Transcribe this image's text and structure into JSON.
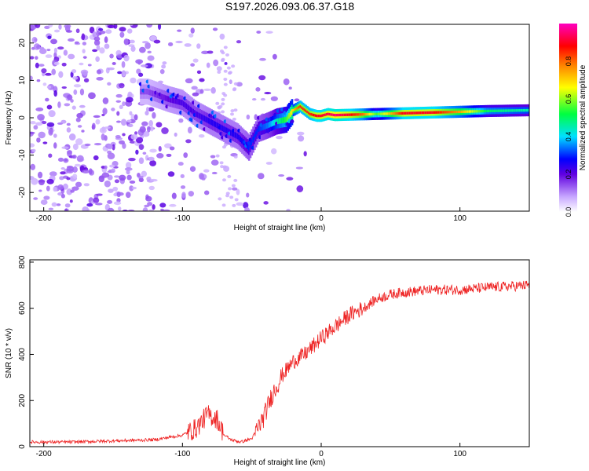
{
  "title": "S197.2026.093.06.37.G18",
  "chart_data": [
    {
      "type": "heatmap",
      "xlabel": "Height of straight line (km)",
      "ylabel": "Frequency (Hz)",
      "xlim": [
        -210,
        150
      ],
      "ylim": [
        -25,
        25
      ],
      "xticks": [
        -200,
        -100,
        0,
        100
      ],
      "yticks": [
        -20,
        -10,
        0,
        10,
        20
      ],
      "grid": false,
      "colorbar": {
        "label": "Normalized spectral amplitude",
        "range": [
          0,
          1
        ],
        "ticks": [
          "0.0",
          "0.2",
          "0.4",
          "0.6",
          "0.8"
        ],
        "tick_values": [
          0,
          0.2,
          0.4,
          0.6,
          0.8
        ],
        "colors": [
          "#ffffff",
          "#c8a8ff",
          "#6000e0",
          "#0000ff",
          "#00e0ff",
          "#00ff40",
          "#ffff00",
          "#ff8000",
          "#ff0000",
          "#ff00c0"
        ]
      },
      "ridge": {
        "x": [
          -125,
          -110,
          -100,
          -90,
          -80,
          -70,
          -60,
          -52,
          -45,
          -38,
          -32,
          -25,
          -20,
          -15,
          -8,
          -3,
          0,
          5,
          10,
          20,
          30,
          40,
          60,
          80,
          100,
          120,
          150
        ],
        "y": [
          7,
          5,
          4,
          1,
          -1,
          -3,
          -5,
          -8,
          -3,
          -2,
          -1,
          -0.5,
          2,
          3,
          1,
          0.5,
          0.5,
          1,
          0.7,
          0.8,
          0.9,
          1.0,
          1.2,
          1.4,
          1.6,
          1.8,
          2.0
        ],
        "amplitude": [
          0.15,
          0.2,
          0.22,
          0.22,
          0.25,
          0.25,
          0.25,
          0.3,
          0.3,
          0.35,
          0.45,
          0.55,
          0.7,
          0.85,
          0.85,
          0.9,
          0.9,
          0.92,
          0.95,
          0.9,
          0.8,
          0.55,
          0.9,
          0.9,
          0.75,
          0.5,
          0.45
        ]
      }
    },
    {
      "type": "line",
      "xlabel": "Height of straight line (km)",
      "ylabel": "SNR (10 * v/v)",
      "xlim": [
        -210,
        150
      ],
      "ylim": [
        0,
        810
      ],
      "xticks": [
        -200,
        -100,
        0,
        100
      ],
      "yticks": [
        0,
        200,
        400,
        600,
        800
      ],
      "grid": false,
      "series": [
        {
          "name": "SNR",
          "color": "#ee2222",
          "x": [
            -210,
            -180,
            -150,
            -120,
            -110,
            -100,
            -90,
            -82,
            -75,
            -70,
            -65,
            -58,
            -50,
            -42,
            -35,
            -28,
            -20,
            -12,
            -5,
            0,
            10,
            20,
            30,
            40,
            50,
            60,
            80,
            100,
            120,
            150
          ],
          "y": [
            20,
            20,
            25,
            30,
            40,
            50,
            80,
            140,
            120,
            50,
            30,
            20,
            35,
            120,
            230,
            310,
            370,
            400,
            440,
            470,
            520,
            570,
            600,
            640,
            660,
            670,
            680,
            680,
            690,
            700
          ]
        }
      ]
    }
  ]
}
